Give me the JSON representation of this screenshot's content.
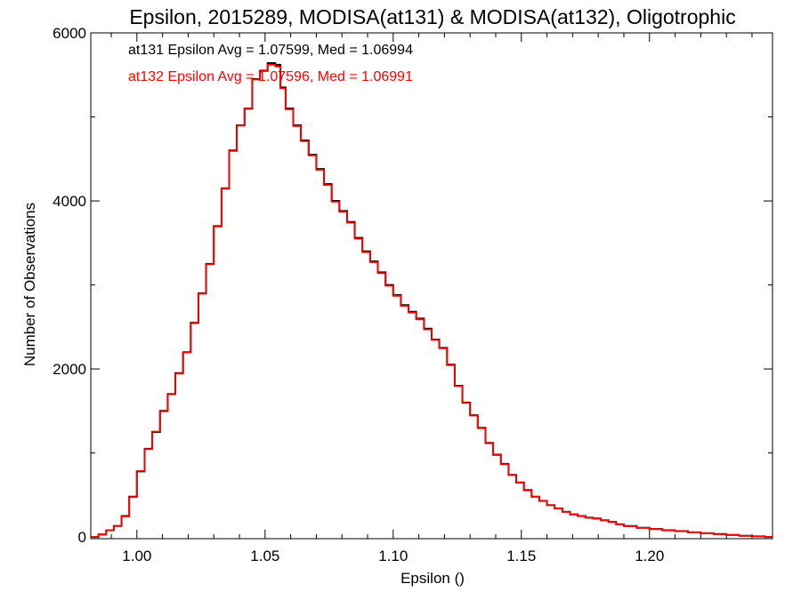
{
  "chart_data": {
    "type": "line",
    "title": "Epsilon, 2015289, MODISA(at131) & MODISA(at132), Oligotrophic",
    "xlabel": "Epsilon ()",
    "ylabel": "Number of Observations",
    "xlim": [
      0.982,
      1.248
    ],
    "ylim": [
      -20,
      6000
    ],
    "x_ticks": [
      1.0,
      1.05,
      1.1,
      1.15,
      1.2
    ],
    "x_tick_labels": [
      "1.00",
      "1.05",
      "1.10",
      "1.15",
      "1.20"
    ],
    "y_ticks": [
      0,
      2000,
      4000,
      6000
    ],
    "y_tick_labels": [
      "0",
      "2000",
      "4000",
      "6000"
    ],
    "y_minor_step": 1000,
    "x_minor_step": 0.01,
    "step_style": "histogram",
    "annotations": [
      {
        "text": "at131 Epsilon Avg = 1.07599, Med = 1.06994",
        "color": "#000000"
      },
      {
        "text": "at132 Epsilon Avg = 1.07596, Med = 1.06991",
        "color": "#ff0000"
      }
    ],
    "series": [
      {
        "color": "#000000",
        "x": [
          0.982,
          0.985,
          0.988,
          0.991,
          0.994,
          0.997,
          1.0,
          1.003,
          1.006,
          1.009,
          1.012,
          1.015,
          1.018,
          1.021,
          1.024,
          1.027,
          1.03,
          1.033,
          1.036,
          1.039,
          1.042,
          1.045,
          1.048,
          1.051,
          1.054,
          1.056,
          1.058,
          1.061,
          1.064,
          1.067,
          1.07,
          1.073,
          1.076,
          1.079,
          1.082,
          1.085,
          1.088,
          1.091,
          1.094,
          1.097,
          1.1,
          1.103,
          1.106,
          1.109,
          1.112,
          1.115,
          1.118,
          1.121,
          1.124,
          1.127,
          1.13,
          1.133,
          1.136,
          1.139,
          1.142,
          1.145,
          1.148,
          1.151,
          1.154,
          1.157,
          1.16,
          1.163,
          1.166,
          1.169,
          1.172,
          1.175,
          1.178,
          1.181,
          1.184,
          1.187,
          1.19,
          1.195,
          1.2,
          1.205,
          1.21,
          1.215,
          1.22,
          1.225,
          1.23,
          1.235,
          1.24,
          1.245
        ],
        "y": [
          0,
          30,
          80,
          130,
          250,
          480,
          780,
          1050,
          1250,
          1500,
          1700,
          1950,
          2200,
          2550,
          2900,
          3250,
          3700,
          4150,
          4600,
          4900,
          5100,
          5450,
          5550,
          5640,
          5620,
          5350,
          5100,
          4900,
          4720,
          4550,
          4380,
          4200,
          4000,
          3880,
          3750,
          3560,
          3400,
          3280,
          3150,
          3000,
          2880,
          2760,
          2680,
          2600,
          2480,
          2350,
          2250,
          2050,
          1800,
          1600,
          1450,
          1300,
          1120,
          980,
          870,
          740,
          650,
          560,
          480,
          430,
          380,
          340,
          300,
          270,
          250,
          230,
          220,
          200,
          180,
          150,
          130,
          110,
          95,
          80,
          70,
          55,
          45,
          35,
          25,
          15,
          8,
          0
        ]
      },
      {
        "color": "#ff0000",
        "x": [
          0.982,
          0.985,
          0.988,
          0.991,
          0.994,
          0.997,
          1.0,
          1.003,
          1.006,
          1.009,
          1.012,
          1.015,
          1.018,
          1.021,
          1.024,
          1.027,
          1.03,
          1.033,
          1.036,
          1.039,
          1.042,
          1.045,
          1.048,
          1.051,
          1.054,
          1.056,
          1.058,
          1.061,
          1.064,
          1.067,
          1.07,
          1.073,
          1.076,
          1.079,
          1.082,
          1.085,
          1.088,
          1.091,
          1.094,
          1.097,
          1.1,
          1.103,
          1.106,
          1.109,
          1.112,
          1.115,
          1.118,
          1.121,
          1.124,
          1.127,
          1.13,
          1.133,
          1.136,
          1.139,
          1.142,
          1.145,
          1.148,
          1.151,
          1.154,
          1.157,
          1.16,
          1.163,
          1.166,
          1.169,
          1.172,
          1.175,
          1.178,
          1.181,
          1.184,
          1.187,
          1.19,
          1.195,
          1.2,
          1.205,
          1.21,
          1.215,
          1.22,
          1.225,
          1.23,
          1.235,
          1.24,
          1.245
        ],
        "y": [
          0,
          28,
          82,
          132,
          245,
          475,
          785,
          1045,
          1255,
          1495,
          1705,
          1945,
          2195,
          2545,
          2895,
          3245,
          3695,
          4145,
          4595,
          4895,
          5095,
          5445,
          5545,
          5620,
          5600,
          5340,
          5090,
          4890,
          4710,
          4540,
          4370,
          4190,
          3990,
          3870,
          3740,
          3550,
          3390,
          3270,
          3140,
          2990,
          2870,
          2750,
          2670,
          2590,
          2470,
          2345,
          2245,
          2045,
          1795,
          1595,
          1445,
          1295,
          1115,
          975,
          865,
          735,
          645,
          555,
          478,
          428,
          378,
          338,
          298,
          268,
          248,
          228,
          218,
          198,
          178,
          148,
          128,
          108,
          93,
          78,
          68,
          53,
          43,
          33,
          23,
          13,
          6,
          0
        ]
      }
    ],
    "grid": false,
    "legend": "top-left annotations"
  }
}
